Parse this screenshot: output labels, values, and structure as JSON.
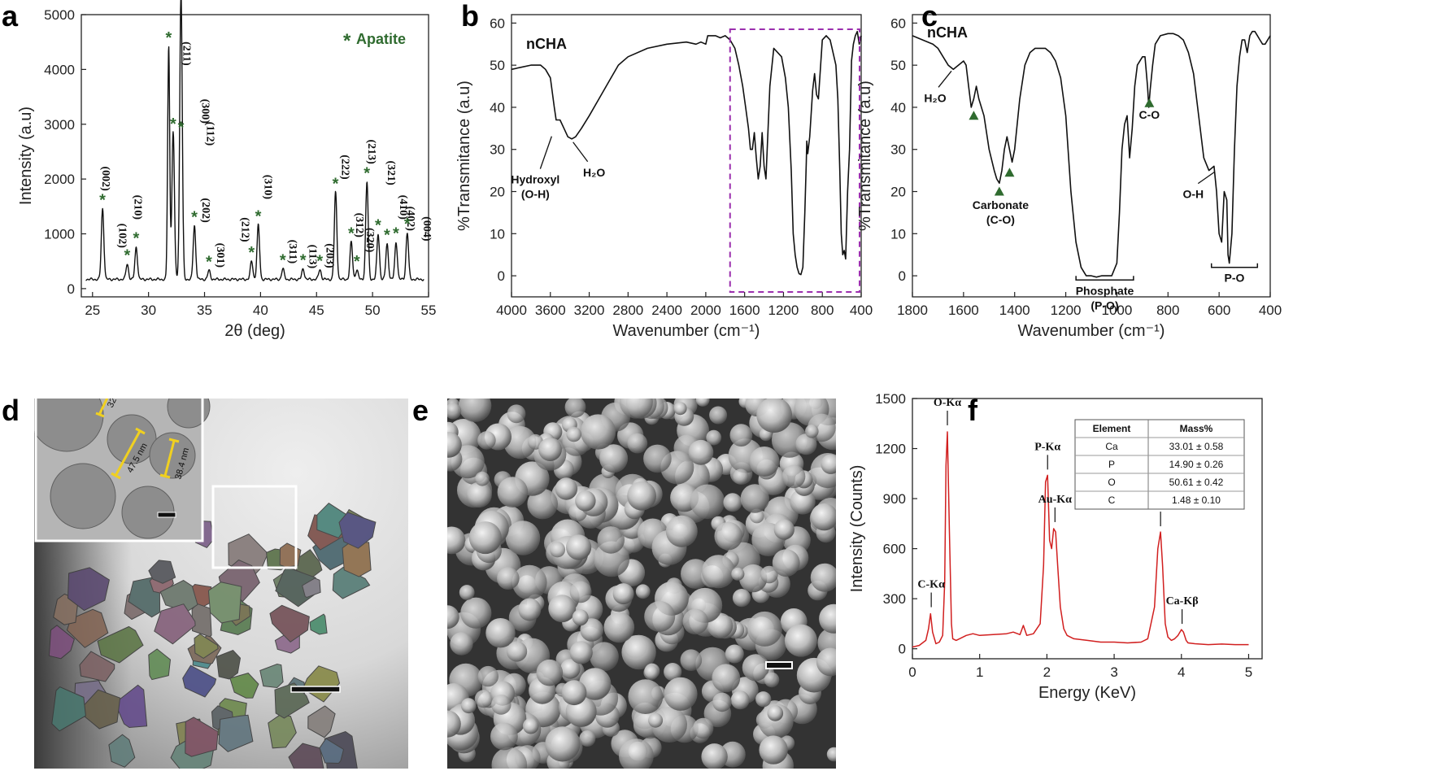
{
  "panels": {
    "a": "a",
    "b": "b",
    "c": "c",
    "d": "d",
    "e": "e",
    "f": "f"
  },
  "chart_data": [
    {
      "id": "a",
      "type": "line",
      "xlabel": "2θ (deg)",
      "ylabel": "Intensity (a.u)",
      "xlim": [
        24,
        55
      ],
      "ylim": [
        -150,
        5000
      ],
      "xticks": [
        "25",
        "30",
        "35",
        "40",
        "45",
        "50",
        "55"
      ],
      "yticks": [
        "0",
        "1000",
        "2000",
        "3000",
        "4000",
        "5000"
      ],
      "legend": {
        "marker": "*",
        "label": "Apatite",
        "placement": "top-right"
      },
      "baseline": 170,
      "peaks": [
        {
          "x": 25.9,
          "y": 1460,
          "hkl": "(002)"
        },
        {
          "x": 28.1,
          "y": 450,
          "hkl": "(102)"
        },
        {
          "x": 28.9,
          "y": 760,
          "hkl": "(210)"
        },
        {
          "x": 31.8,
          "y": 4420,
          "hkl": "(211)"
        },
        {
          "x": 32.2,
          "y": 2850,
          "hkl": ""
        },
        {
          "x": 32.9,
          "y": 2780,
          "hkl": "(112)"
        },
        {
          "x": 32.9,
          "y": 2780,
          "hkl": "(300)"
        },
        {
          "x": 34.1,
          "y": 1150,
          "hkl": "(202)"
        },
        {
          "x": 35.4,
          "y": 330,
          "hkl": "(301)"
        },
        {
          "x": 39.2,
          "y": 500,
          "hkl": "(212)"
        },
        {
          "x": 39.8,
          "y": 1160,
          "hkl": "(310)"
        },
        {
          "x": 42.0,
          "y": 360,
          "hkl": "(311)"
        },
        {
          "x": 43.8,
          "y": 360,
          "hkl": "(113)"
        },
        {
          "x": 45.3,
          "y": 350,
          "hkl": "(203)"
        },
        {
          "x": 46.7,
          "y": 1760,
          "hkl": "(222)"
        },
        {
          "x": 48.1,
          "y": 850,
          "hkl": "(312)"
        },
        {
          "x": 48.6,
          "y": 340,
          "hkl": "(320)"
        },
        {
          "x": 49.5,
          "y": 1950,
          "hkl": "(213)"
        },
        {
          "x": 50.5,
          "y": 1000,
          "hkl": "(321)"
        },
        {
          "x": 51.3,
          "y": 820,
          "hkl": "(410)"
        },
        {
          "x": 52.1,
          "y": 850,
          "hkl": "(402)"
        },
        {
          "x": 53.1,
          "y": 1020,
          "hkl": "(004)"
        }
      ]
    },
    {
      "id": "b",
      "type": "line",
      "title": "nCHA",
      "xlabel": "Wavenumber (cm⁻¹)",
      "ylabel": "%Transmitance (a.u)",
      "xlim": [
        4000,
        400
      ],
      "ylim": [
        -5,
        62
      ],
      "xticks": [
        "4000",
        "3600",
        "3200",
        "2800",
        "2400",
        "2000",
        "1600",
        "1200",
        "800",
        "400"
      ],
      "yticks": [
        "0",
        "10",
        "20",
        "30",
        "40",
        "50",
        "60"
      ],
      "x": [
        4000,
        3900,
        3800,
        3700,
        3650,
        3600,
        3560,
        3540,
        3500,
        3460,
        3420,
        3380,
        3340,
        3280,
        3200,
        3100,
        3000,
        2900,
        2800,
        2600,
        2400,
        2200,
        2100,
        2050,
        2000,
        1980,
        1950,
        1900,
        1850,
        1800,
        1750,
        1700,
        1660,
        1620,
        1590,
        1560,
        1540,
        1520,
        1500,
        1480,
        1460,
        1440,
        1420,
        1400,
        1380,
        1340,
        1300,
        1260,
        1220,
        1180,
        1150,
        1120,
        1100,
        1080,
        1060,
        1040,
        1020,
        1000,
        980,
        965,
        960,
        950,
        930,
        900,
        880,
        860,
        840,
        800,
        760,
        720,
        700,
        660,
        640,
        620,
        605,
        590,
        575,
        560,
        540,
        520,
        500,
        480,
        460,
        440,
        420,
        400
      ],
      "y": [
        49,
        49.5,
        50,
        50,
        49,
        47,
        40,
        37,
        37,
        35,
        33,
        32.5,
        33,
        35,
        38,
        42,
        46,
        50,
        52,
        54,
        55,
        55.5,
        55,
        55.5,
        55,
        57,
        57,
        57,
        56.5,
        57,
        56,
        54,
        50,
        45,
        40,
        35,
        30,
        30,
        34,
        28,
        23,
        26,
        34,
        26,
        23,
        45,
        54,
        53,
        52,
        47,
        40,
        25,
        10,
        5,
        2,
        0.5,
        0.3,
        2,
        15,
        27,
        32,
        29,
        33,
        44,
        48,
        43,
        42,
        56,
        57,
        56,
        54,
        50,
        42,
        25,
        10,
        5,
        6,
        4,
        20,
        30,
        51,
        55,
        57,
        58,
        55,
        57
      ],
      "highlight": {
        "x0": 1750,
        "x1": 400,
        "style": "dashed",
        "color": "#9b2fae"
      },
      "annotations": [
        {
          "text": "Hydroxyl",
          "text2": "(O-H)",
          "x": 3570,
          "y": 33.5
        },
        {
          "text": "H₂O",
          "x": 3400,
          "y": 32.5
        }
      ]
    },
    {
      "id": "c",
      "type": "line",
      "title": "nCHA",
      "xlabel": "Wavenumber (cm⁻¹)",
      "ylabel": "%Transmitance (a.u)",
      "xlim": [
        1800,
        400
      ],
      "ylim": [
        -5,
        62
      ],
      "xticks": [
        "1800",
        "1600",
        "1400",
        "1200",
        "1000",
        "800",
        "600",
        "400"
      ],
      "yticks": [
        "0",
        "10",
        "20",
        "30",
        "40",
        "50",
        "60"
      ],
      "x": [
        1800,
        1760,
        1720,
        1700,
        1680,
        1660,
        1640,
        1620,
        1600,
        1590,
        1580,
        1570,
        1560,
        1550,
        1540,
        1520,
        1500,
        1480,
        1470,
        1460,
        1450,
        1440,
        1430,
        1420,
        1410,
        1400,
        1380,
        1360,
        1340,
        1320,
        1300,
        1280,
        1260,
        1240,
        1220,
        1200,
        1180,
        1160,
        1140,
        1120,
        1100,
        1080,
        1060,
        1040,
        1020,
        1000,
        990,
        980,
        970,
        960,
        955,
        950,
        940,
        930,
        920,
        900,
        890,
        880,
        875,
        870,
        860,
        850,
        830,
        800,
        780,
        760,
        740,
        720,
        700,
        680,
        660,
        640,
        620,
        610,
        600,
        590,
        580,
        570,
        565,
        560,
        550,
        540,
        530,
        520,
        510,
        500,
        490,
        480,
        470,
        460,
        450,
        440,
        430,
        420,
        410,
        400
      ],
      "y": [
        57,
        56,
        55,
        54,
        52,
        50,
        49,
        50,
        51,
        50,
        45,
        40,
        42,
        45,
        42,
        38,
        30,
        25,
        23,
        22,
        25,
        30,
        33,
        30,
        27,
        30,
        42,
        50,
        53,
        54,
        54,
        54,
        53,
        51,
        47,
        38,
        20,
        8,
        2,
        0,
        0,
        -0.3,
        0,
        0,
        0,
        3,
        15,
        30,
        36,
        38,
        33,
        28,
        35,
        45,
        50,
        52,
        52,
        45,
        40,
        44,
        50,
        55,
        57,
        57.5,
        57.5,
        57,
        56,
        53,
        48,
        38,
        28,
        25,
        26,
        20,
        10,
        8,
        20,
        18,
        5,
        3,
        10,
        30,
        45,
        52,
        56,
        56,
        53,
        57,
        58,
        58,
        57,
        56,
        55,
        55,
        56,
        57
      ],
      "annotations": [
        {
          "text": "H₂O",
          "x": 1660,
          "y": 49
        },
        {
          "text": "Carbonate",
          "text2": "(C-O)",
          "x": 1455,
          "y": 22
        },
        {
          "text": "C-O",
          "x": 873,
          "y": 40
        },
        {
          "text": "O-H",
          "x": 625,
          "y": 25
        },
        {
          "text": "Phosphate",
          "text2": "(P-O)",
          "x": 1050,
          "y": -1
        },
        {
          "text": "P-O",
          "x": 555,
          "y": 2
        }
      ],
      "markers": [
        {
          "x": 1560,
          "y": 38
        },
        {
          "x": 1460,
          "y": 20
        },
        {
          "x": 1420,
          "y": 24.5
        },
        {
          "x": 873,
          "y": 41
        }
      ]
    },
    {
      "id": "f",
      "type": "line",
      "xlabel": "Energy (KeV)",
      "ylabel": "Intensity (Counts)",
      "xlim": [
        0,
        5.2
      ],
      "ylim": [
        -60,
        1500
      ],
      "xticks": [
        "0",
        "1",
        "2",
        "3",
        "4",
        "5"
      ],
      "yticks": [
        "0",
        "300",
        "600",
        "900",
        "1200",
        "1500"
      ],
      "x": [
        0,
        0.1,
        0.2,
        0.24,
        0.27,
        0.3,
        0.35,
        0.4,
        0.45,
        0.48,
        0.5,
        0.52,
        0.55,
        0.58,
        0.6,
        0.65,
        0.7,
        0.8,
        0.9,
        1.0,
        1.2,
        1.4,
        1.5,
        1.6,
        1.65,
        1.7,
        1.8,
        1.9,
        1.95,
        1.98,
        2.01,
        2.04,
        2.07,
        2.1,
        2.13,
        2.16,
        2.2,
        2.25,
        2.3,
        2.4,
        2.6,
        2.8,
        3.0,
        3.2,
        3.4,
        3.5,
        3.6,
        3.65,
        3.69,
        3.72,
        3.76,
        3.8,
        3.85,
        3.9,
        3.95,
        4.0,
        4.03,
        4.07,
        4.1,
        4.2,
        4.4,
        4.6,
        4.8,
        5.0
      ],
      "y": [
        10,
        20,
        50,
        120,
        210,
        100,
        30,
        40,
        80,
        400,
        1100,
        1300,
        700,
        150,
        60,
        50,
        60,
        80,
        90,
        80,
        85,
        90,
        100,
        85,
        140,
        80,
        90,
        150,
        500,
        1000,
        1040,
        650,
        600,
        720,
        700,
        500,
        250,
        120,
        80,
        60,
        50,
        40,
        40,
        35,
        40,
        60,
        250,
        600,
        700,
        500,
        150,
        70,
        50,
        60,
        80,
        115,
        100,
        50,
        35,
        30,
        25,
        28,
        25,
        25
      ],
      "labels": [
        {
          "text": "C-Kα",
          "x": 0.28,
          "y": 220
        },
        {
          "text": "O-Kα",
          "x": 0.52,
          "y": 1310
        },
        {
          "text": "P-Kα",
          "x": 2.01,
          "y": 1045
        },
        {
          "text": "Au-Kα",
          "x": 2.12,
          "y": 730
        },
        {
          "text": "Ca-Kα",
          "x": 3.69,
          "y": 705
        },
        {
          "text": "Ca-Kβ",
          "x": 4.01,
          "y": 120
        }
      ],
      "table": {
        "headers": [
          "Element",
          "Mass%"
        ],
        "rows": [
          [
            "Ca",
            "33.01 ± 0.58"
          ],
          [
            "P",
            "14.90 ± 0.26"
          ],
          [
            "O",
            "50.61 ± 0.42"
          ],
          [
            "C",
            "1.48 ± 0.10"
          ]
        ]
      }
    }
  ],
  "images": {
    "d": {
      "inset_measurements": [
        "32.1 nm",
        "47.5 nm",
        "38.4 nm"
      ]
    },
    "e": {}
  }
}
